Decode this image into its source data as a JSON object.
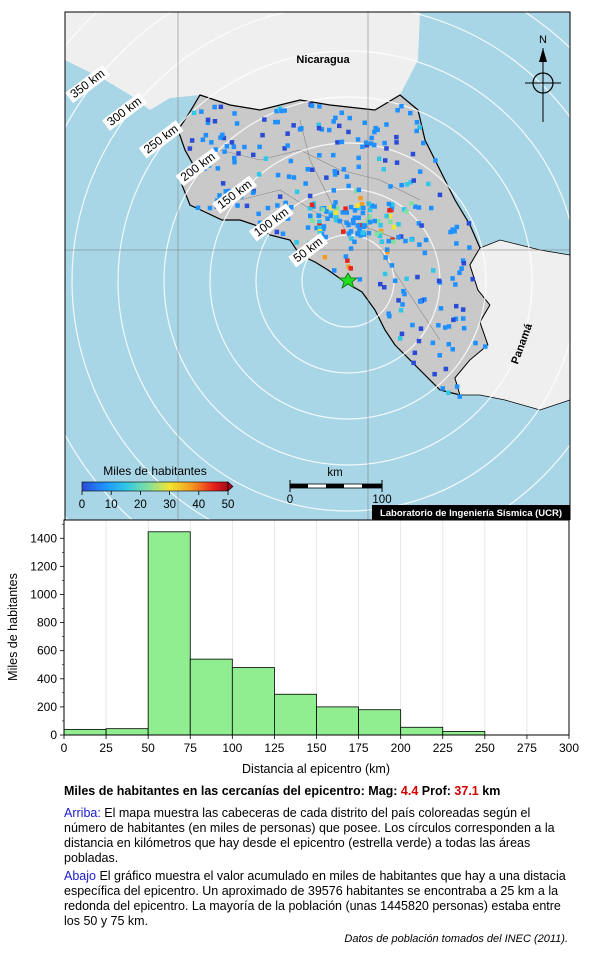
{
  "map": {
    "country_labels": [
      "Nicaragua",
      "Panamá"
    ],
    "north_label": "N",
    "ring_labels": [
      "50 km",
      "100 km",
      "150 km",
      "200 km",
      "250 km",
      "300 km",
      "350 km"
    ],
    "colorbar": {
      "title": "Miles de habitantes",
      "ticks": [
        "0",
        "10",
        "20",
        "30",
        "40",
        "50"
      ],
      "colors": [
        "#2a4bd7",
        "#1e90ff",
        "#2ec7e8",
        "#7fe0a0",
        "#f2e531",
        "#f59b23",
        "#e8231a",
        "#a5081a"
      ]
    },
    "scale": {
      "title": "km",
      "ticks": [
        "0",
        "100"
      ]
    },
    "credit": "Laboratorio de Ingeniería Sísmica (UCR)",
    "colors": {
      "sea": "#a9d6e6",
      "land_cr": "#c9c9c9",
      "land_other": "#efefef",
      "epicenter": "#22dd22"
    }
  },
  "chart_data": {
    "type": "bar",
    "xlabel": "Distancia al epicentro (km)",
    "ylabel": "Miles de habitantes",
    "bins": [
      [
        0,
        25
      ],
      [
        25,
        50
      ],
      [
        50,
        75
      ],
      [
        75,
        100
      ],
      [
        100,
        125
      ],
      [
        125,
        150
      ],
      [
        150,
        175
      ],
      [
        175,
        200
      ],
      [
        200,
        225
      ],
      [
        225,
        250
      ],
      [
        250,
        275
      ],
      [
        275,
        300
      ]
    ],
    "values": [
      40,
      45,
      1446,
      540,
      480,
      290,
      200,
      180,
      55,
      25,
      0,
      0
    ],
    "xlim": [
      0,
      300
    ],
    "ylim": [
      0,
      1530
    ],
    "xticks": [
      0,
      25,
      50,
      75,
      100,
      125,
      150,
      175,
      200,
      225,
      250,
      275,
      300
    ],
    "yticks": [
      0,
      200,
      400,
      600,
      800,
      1000,
      1200,
      1400
    ],
    "bar_color": "#90ee90"
  },
  "caption": {
    "title_prefix": "Miles de habitantes en las cercanías del epicentro: Mag: ",
    "mag": "4.4",
    "depth_label": " Prof: ",
    "depth": "37.1",
    "depth_unit": " km",
    "top_lead": "Arriba:",
    "top_text": " El mapa muestra las cabeceras de cada distrito del país coloreadas según el número de habitantes (en miles de personas) que posee. Los círculos corresponden a la distancia en kilómetros que hay desde el epicentro (estrella verde) a todas las áreas pobladas.",
    "bottom_lead": "Abajo",
    "bottom_text": " El gráfico muestra el valor acumulado en miles de habitantes que hay a una distacia específica del epicentro. Un aproximado de 39576 habitantes se encontraba a 25 km a la redonda del epicentro. La mayoría de la población (unas 1445820 personas) estaba entre los 50 y 75 km.",
    "source": "Datos de población tomados del INEC (2011)."
  }
}
